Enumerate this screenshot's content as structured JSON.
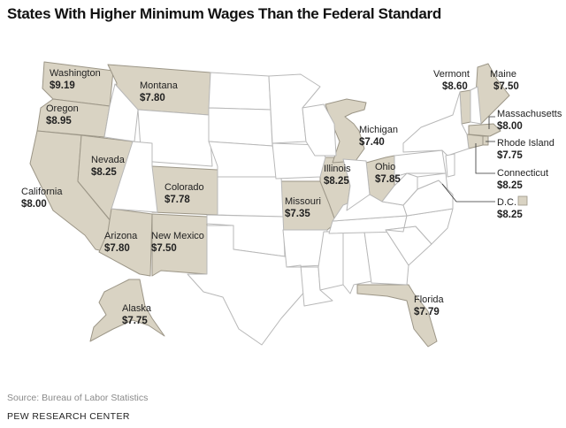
{
  "title": "States With Higher Minimum Wages Than the Federal Standard",
  "colors": {
    "higher": "#d9d3c3",
    "other": "#ffffff",
    "border": "#b8b8b8"
  },
  "states": {
    "washington": {
      "name": "Washington",
      "wage": "$9.19"
    },
    "oregon": {
      "name": "Oregon",
      "wage": "$8.95"
    },
    "california": {
      "name": "California",
      "wage": "$8.00"
    },
    "nevada": {
      "name": "Nevada",
      "wage": "$8.25"
    },
    "arizona": {
      "name": "Arizona",
      "wage": "$7.80"
    },
    "montana": {
      "name": "Montana",
      "wage": "$7.80"
    },
    "colorado": {
      "name": "Colorado",
      "wage": "$7.78"
    },
    "new_mexico": {
      "name": "New Mexico",
      "wage": "$7.50"
    },
    "missouri": {
      "name": "Missouri",
      "wage": "$7.35"
    },
    "illinois": {
      "name": "Illinois",
      "wage": "$8.25"
    },
    "michigan": {
      "name": "Michigan",
      "wage": "$7.40"
    },
    "ohio": {
      "name": "Ohio",
      "wage": "$7.85"
    },
    "florida": {
      "name": "Florida",
      "wage": "$7.79"
    },
    "alaska": {
      "name": "Alaska",
      "wage": "$7.75"
    },
    "vermont": {
      "name": "Vermont",
      "wage": "$8.60"
    },
    "maine": {
      "name": "Maine",
      "wage": "$7.50"
    },
    "massachusetts": {
      "name": "Massachusetts",
      "wage": "$8.00"
    },
    "rhode_island": {
      "name": "Rhode Island",
      "wage": "$7.75"
    },
    "connecticut": {
      "name": "Connecticut",
      "wage": "$8.25"
    },
    "dc": {
      "name": "D.C.",
      "wage": "$8.25"
    }
  },
  "source": "Source: Bureau of Labor Statistics",
  "brand": "PEW RESEARCH CENTER"
}
